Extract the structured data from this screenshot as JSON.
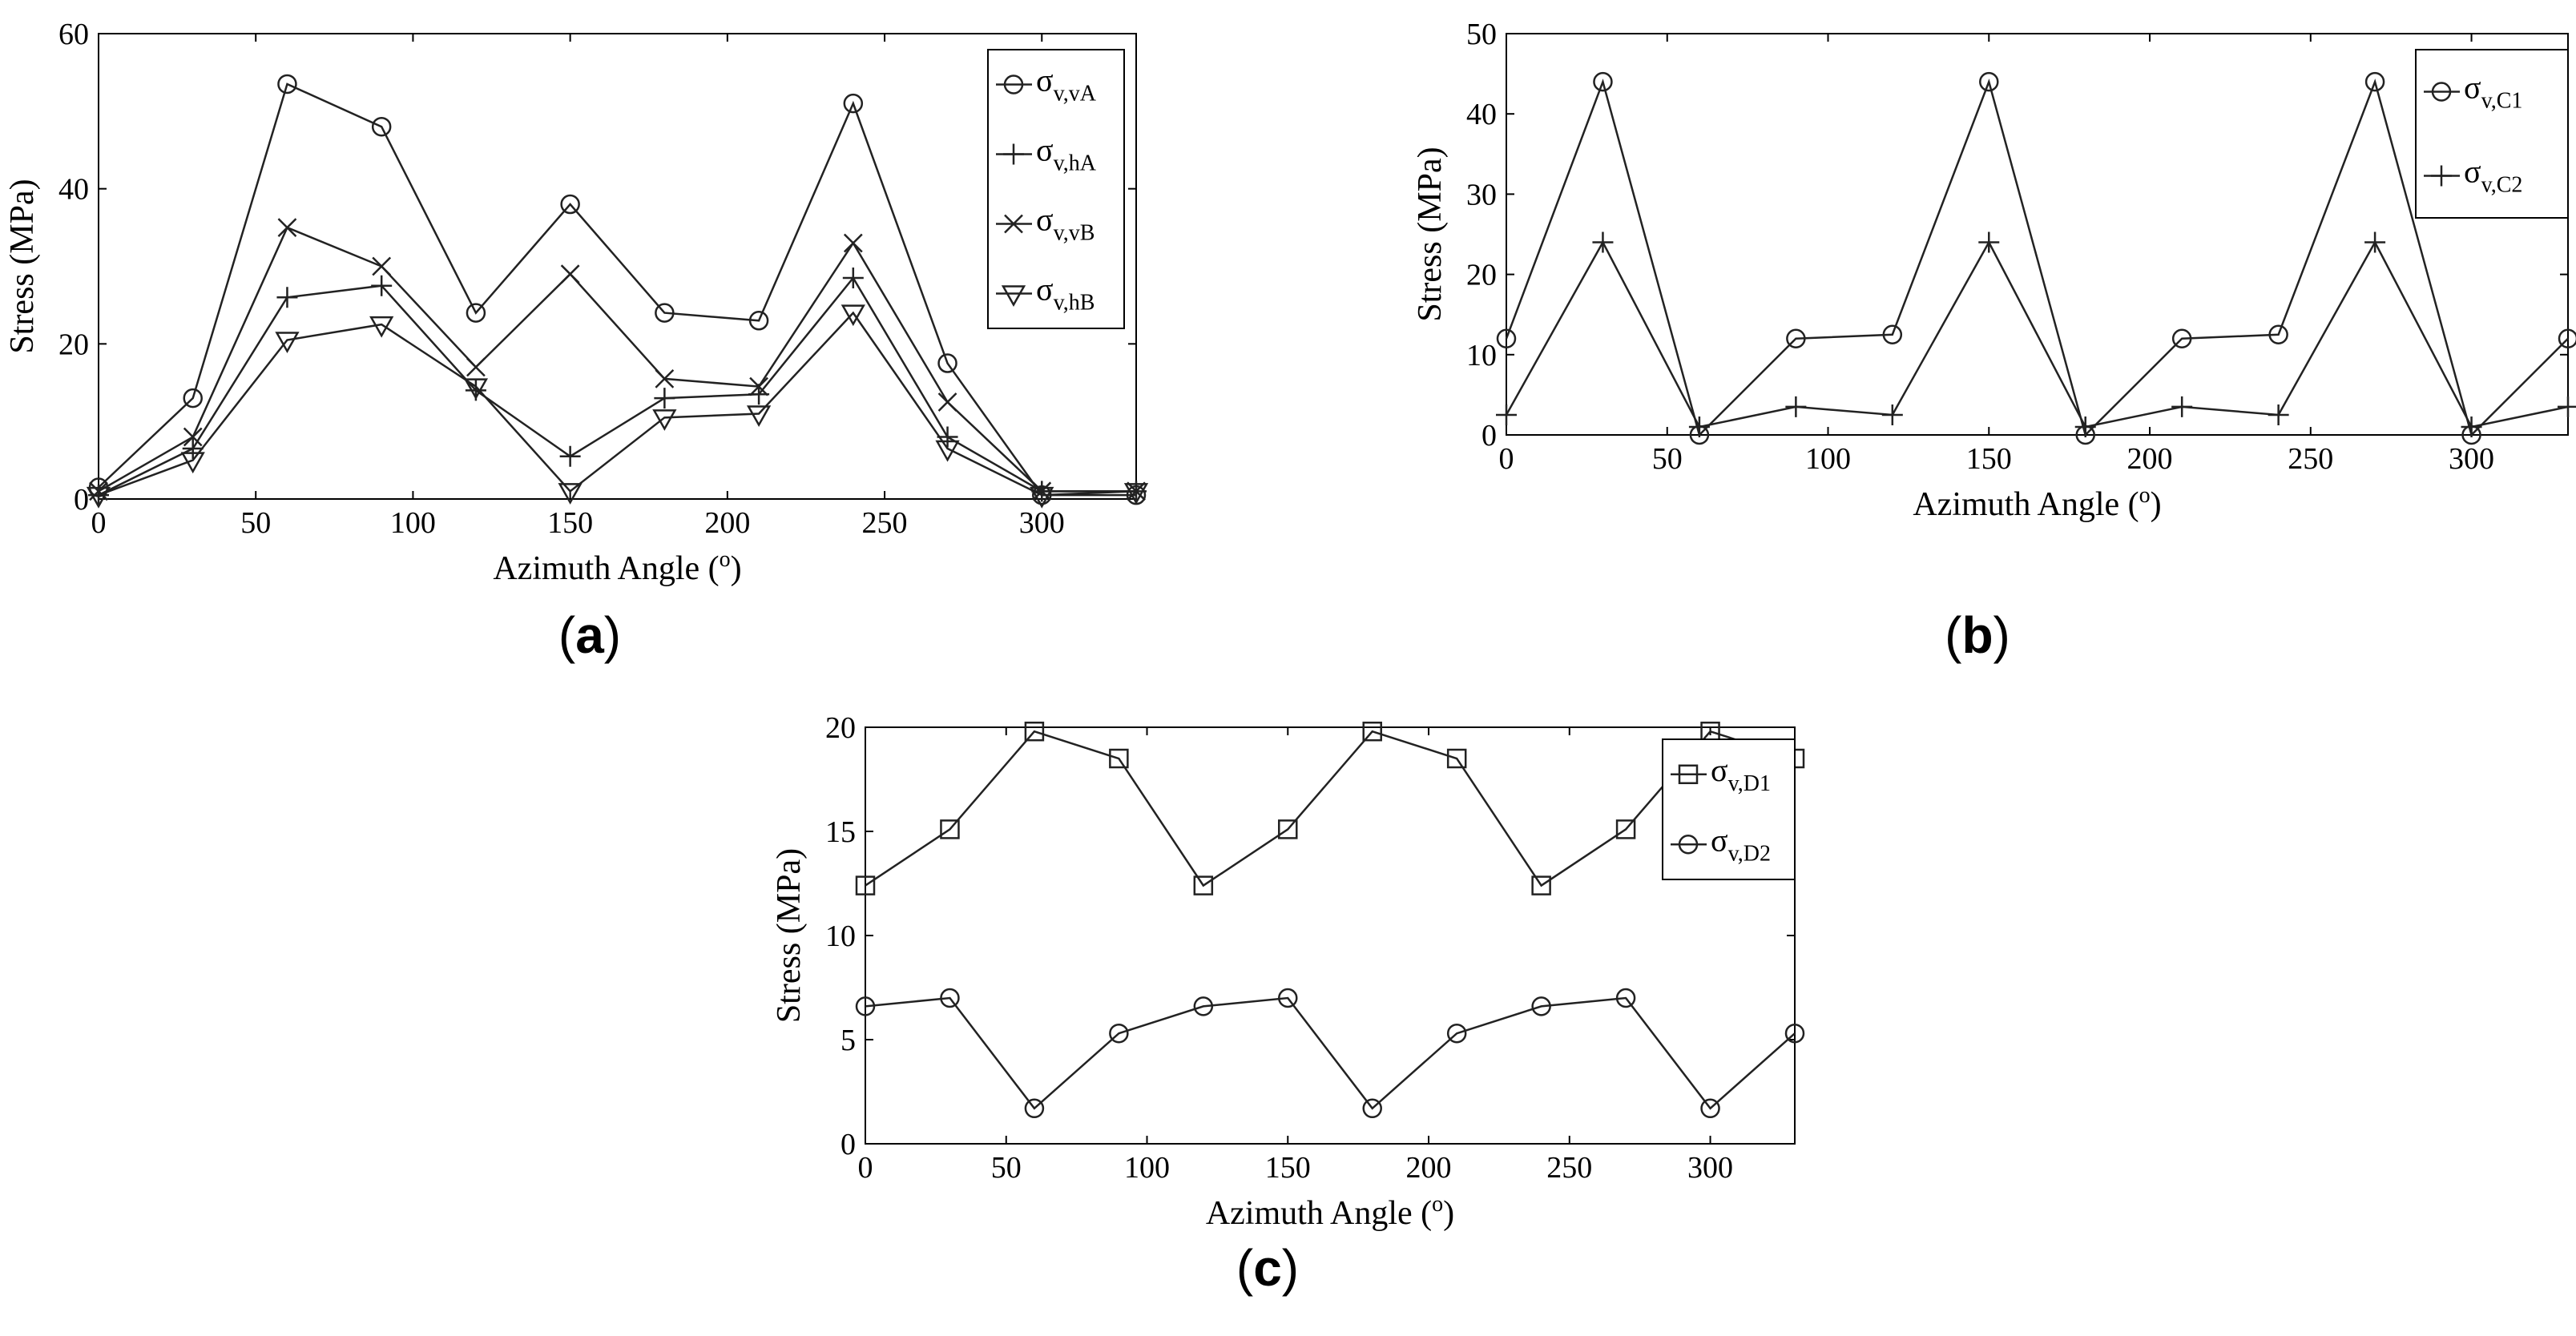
{
  "figure": {
    "panel_labels": {
      "open": "(",
      "close": ")"
    }
  },
  "chart_data": [
    {
      "id": "a",
      "type": "line",
      "panel_label": "a",
      "xlabel": "Azimuth Angle (",
      "xlabel_sup": "o",
      "xlabel_close": ")",
      "ylabel": "Stress (MPa)",
      "xlim": [
        0,
        330
      ],
      "ylim": [
        0,
        60
      ],
      "xticks": [
        0,
        50,
        100,
        150,
        200,
        250,
        300
      ],
      "yticks": [
        0,
        20,
        40,
        60
      ],
      "x": [
        0,
        30,
        60,
        90,
        120,
        150,
        180,
        210,
        240,
        270,
        300,
        330
      ],
      "series": [
        {
          "symbol": "σ",
          "sub": "v,vA",
          "marker": "circle",
          "values": [
            1.5,
            13,
            53.5,
            48,
            24,
            38,
            24,
            23,
            51,
            17.5,
            0.5,
            0.5
          ]
        },
        {
          "symbol": "σ",
          "sub": "v,hA",
          "marker": "plus",
          "values": [
            0.5,
            6.5,
            26,
            27.5,
            14,
            5.5,
            13,
            13.5,
            28.5,
            8,
            1,
            1
          ]
        },
        {
          "symbol": "σ",
          "sub": "v,vB",
          "marker": "x",
          "values": [
            1,
            8,
            35,
            30,
            17,
            29,
            15.5,
            14.5,
            33,
            12.5,
            1,
            1
          ]
        },
        {
          "symbol": "σ",
          "sub": "v,hB",
          "marker": "triangle-down",
          "values": [
            0.5,
            5,
            20.5,
            22.5,
            14.5,
            1,
            10.5,
            11,
            24,
            6.5,
            0.5,
            1
          ]
        }
      ]
    },
    {
      "id": "b",
      "type": "line",
      "panel_label": "b",
      "xlabel": "Azimuth Angle (",
      "xlabel_sup": "o",
      "xlabel_close": ")",
      "ylabel": "Stress (MPa)",
      "xlim": [
        0,
        330
      ],
      "ylim": [
        0,
        50
      ],
      "xticks": [
        0,
        50,
        100,
        150,
        200,
        250,
        300
      ],
      "yticks": [
        0,
        10,
        20,
        30,
        40,
        50
      ],
      "x": [
        0,
        30,
        60,
        90,
        120,
        150,
        180,
        210,
        240,
        270,
        300,
        330
      ],
      "series": [
        {
          "symbol": "σ",
          "sub": "v,C1",
          "marker": "circle",
          "values": [
            12,
            44,
            0,
            12,
            12.5,
            44,
            0,
            12,
            12.5,
            44,
            0,
            12
          ]
        },
        {
          "symbol": "σ",
          "sub": "v,C2",
          "marker": "plus",
          "values": [
            2.5,
            24,
            1,
            3.5,
            2.5,
            24,
            1,
            3.5,
            2.5,
            24,
            1,
            3.5
          ]
        }
      ]
    },
    {
      "id": "c",
      "type": "line",
      "panel_label": "c",
      "xlabel": "Azimuth Angle (",
      "xlabel_sup": "o",
      "xlabel_close": ")",
      "ylabel": "Stress (MPa)",
      "xlim": [
        0,
        330
      ],
      "ylim": [
        0,
        20
      ],
      "xticks": [
        0,
        50,
        100,
        150,
        200,
        250,
        300
      ],
      "yticks": [
        0,
        5,
        10,
        15,
        20
      ],
      "x": [
        0,
        30,
        60,
        90,
        120,
        150,
        180,
        210,
        240,
        270,
        300,
        330
      ],
      "series": [
        {
          "symbol": "σ",
          "sub": "v,D1",
          "marker": "square",
          "values": [
            12.4,
            15.1,
            19.8,
            18.5,
            12.4,
            15.1,
            19.8,
            18.5,
            12.4,
            15.1,
            19.8,
            18.5
          ]
        },
        {
          "symbol": "σ",
          "sub": "v,D2",
          "marker": "circle",
          "values": [
            6.6,
            7.0,
            1.7,
            5.3,
            6.6,
            7.0,
            1.7,
            5.3,
            6.6,
            7.0,
            1.7,
            5.3
          ]
        }
      ]
    }
  ]
}
